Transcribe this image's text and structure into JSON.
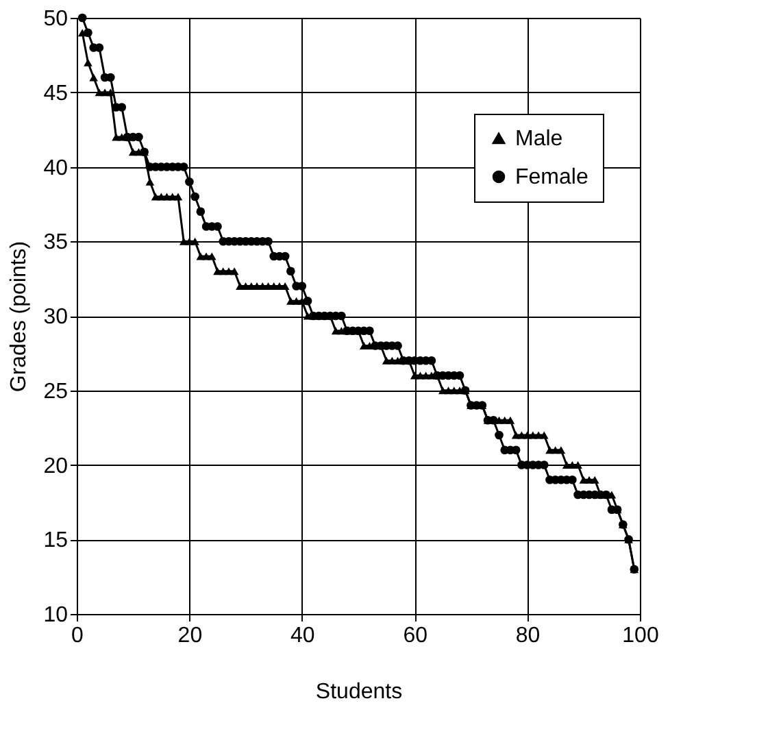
{
  "chart_data": {
    "type": "line",
    "xlabel": "Students",
    "ylabel": "Grades (points)",
    "x": [
      1,
      2,
      3,
      4,
      5,
      6,
      7,
      8,
      9,
      10,
      11,
      12,
      13,
      14,
      15,
      16,
      17,
      18,
      19,
      20,
      21,
      22,
      23,
      24,
      25,
      26,
      27,
      28,
      29,
      30,
      31,
      32,
      33,
      34,
      35,
      36,
      37,
      38,
      39,
      40,
      41,
      42,
      43,
      44,
      45,
      46,
      47,
      48,
      49,
      50,
      51,
      52,
      53,
      54,
      55,
      56,
      57,
      58,
      59,
      60,
      61,
      62,
      63,
      64,
      65,
      66,
      67,
      68,
      69,
      70,
      71,
      72,
      73,
      74,
      75,
      76,
      77,
      78,
      79,
      80,
      81,
      82,
      83,
      84,
      85,
      86,
      87,
      88,
      89,
      90,
      91,
      92,
      93,
      94,
      95,
      96,
      97,
      98,
      99
    ],
    "series": [
      {
        "name": "Male",
        "color": "#000000",
        "marker": "triangle",
        "values": [
          49,
          47,
          46,
          45,
          45,
          45,
          42,
          42,
          42,
          41,
          41,
          41,
          39,
          38,
          38,
          38,
          38,
          38,
          35,
          35,
          35,
          34,
          34,
          34,
          33,
          33,
          33,
          33,
          32,
          32,
          32,
          32,
          32,
          32,
          32,
          32,
          32,
          31,
          31,
          31,
          30,
          30,
          30,
          30,
          30,
          29,
          29,
          29,
          29,
          29,
          28,
          28,
          28,
          28,
          27,
          27,
          27,
          27,
          27,
          26,
          26,
          26,
          26,
          26,
          25,
          25,
          25,
          25,
          25,
          24,
          24,
          24,
          23,
          23,
          23,
          23,
          23,
          22,
          22,
          22,
          22,
          22,
          22,
          21,
          21,
          21,
          20,
          20,
          20,
          19,
          19,
          19,
          18,
          18,
          18,
          17,
          16,
          15,
          13
        ]
      },
      {
        "name": "Female",
        "color": "#000000",
        "marker": "circle",
        "values": [
          50,
          49,
          48,
          48,
          46,
          46,
          44,
          44,
          42,
          42,
          42,
          41,
          40,
          40,
          40,
          40,
          40,
          40,
          40,
          39,
          38,
          37,
          36,
          36,
          36,
          35,
          35,
          35,
          35,
          35,
          35,
          35,
          35,
          35,
          34,
          34,
          34,
          33,
          32,
          32,
          31,
          30,
          30,
          30,
          30,
          30,
          30,
          29,
          29,
          29,
          29,
          29,
          28,
          28,
          28,
          28,
          28,
          27,
          27,
          27,
          27,
          27,
          27,
          26,
          26,
          26,
          26,
          26,
          25,
          24,
          24,
          24,
          23,
          23,
          22,
          21,
          21,
          21,
          20,
          20,
          20,
          20,
          20,
          19,
          19,
          19,
          19,
          19,
          18,
          18,
          18,
          18,
          18,
          18,
          17,
          17,
          16,
          15,
          13
        ]
      }
    ],
    "xlim": [
      0,
      100
    ],
    "xticks": [
      0,
      20,
      40,
      60,
      80,
      100
    ],
    "ylim": [
      10,
      50
    ],
    "yticks": [
      10,
      15,
      20,
      25,
      30,
      35,
      40,
      45,
      50
    ],
    "grid": true,
    "legend": "top right",
    "line_style": "solid"
  }
}
